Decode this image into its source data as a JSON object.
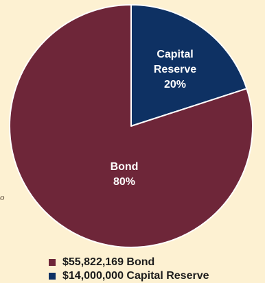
{
  "chart_data": {
    "type": "pie",
    "slices": [
      {
        "name": "Bond",
        "label_lines": [
          "Bond"
        ],
        "percent_label": "80%",
        "value": 80,
        "color": "#6e2639"
      },
      {
        "name": "Capital Reserve",
        "label_lines": [
          "Capital",
          "Reserve"
        ],
        "percent_label": "20%",
        "value": 20,
        "color": "#0e3163"
      }
    ],
    "legend": {
      "position": "bottom",
      "entries": [
        {
          "label": "$55,822,169 Bond",
          "color": "#6e2639"
        },
        {
          "label": "$14,000,000 Capital Reserve",
          "color": "#0e3163"
        }
      ]
    }
  },
  "edge_text": "o",
  "colors": {
    "background": "#fdf1d2",
    "slice_border": "#ffffff"
  }
}
